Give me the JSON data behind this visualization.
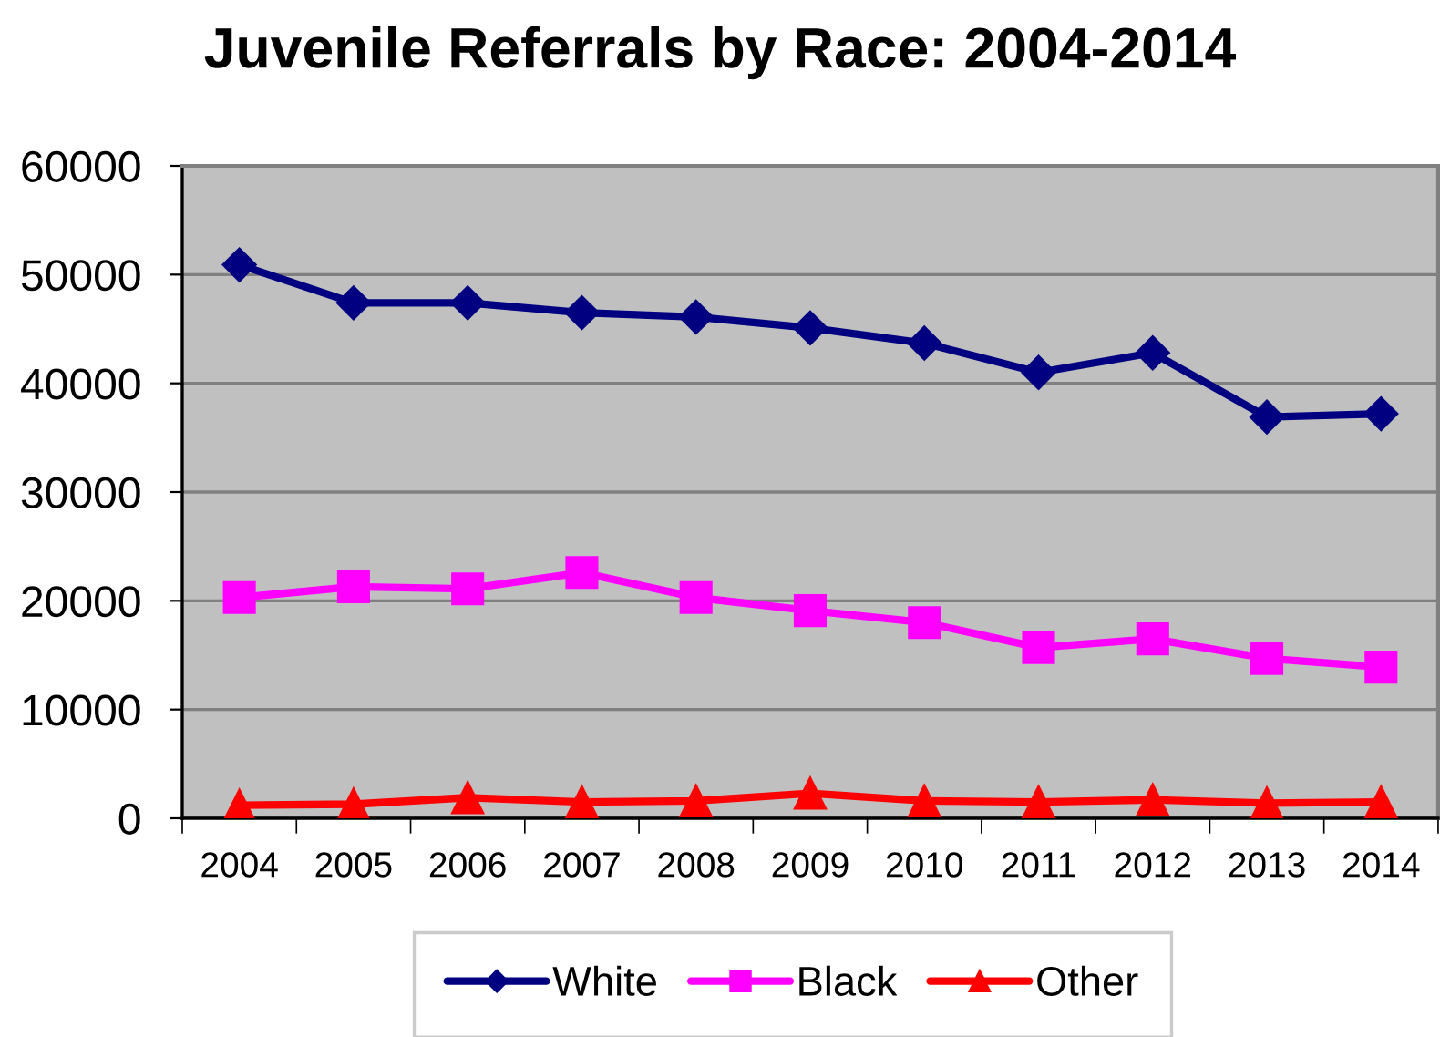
{
  "chart_data": {
    "type": "line",
    "title": "Juvenile Referrals by Race: 2004-2014",
    "categories": [
      "2004",
      "2005",
      "2006",
      "2007",
      "2008",
      "2009",
      "2010",
      "2011",
      "2012",
      "2013",
      "2014"
    ],
    "series": [
      {
        "name": "White",
        "color": "#000080",
        "marker": "diamond",
        "values": [
          50900,
          47400,
          47400,
          46500,
          46100,
          45100,
          43700,
          41000,
          42800,
          36900,
          37200
        ]
      },
      {
        "name": "Black",
        "color": "#ff00ff",
        "marker": "square",
        "values": [
          20300,
          21300,
          21100,
          22600,
          20300,
          19100,
          18000,
          15700,
          16500,
          14700,
          13900
        ]
      },
      {
        "name": "Other",
        "color": "#ff0000",
        "marker": "triangle",
        "values": [
          1200,
          1300,
          1900,
          1500,
          1600,
          2300,
          1600,
          1500,
          1700,
          1400,
          1500
        ]
      }
    ],
    "ylim": [
      0,
      60000
    ],
    "yticks": [
      0,
      10000,
      20000,
      30000,
      40000,
      50000,
      60000
    ],
    "grid": "y",
    "legend": "bottom",
    "line_style": "solid"
  }
}
